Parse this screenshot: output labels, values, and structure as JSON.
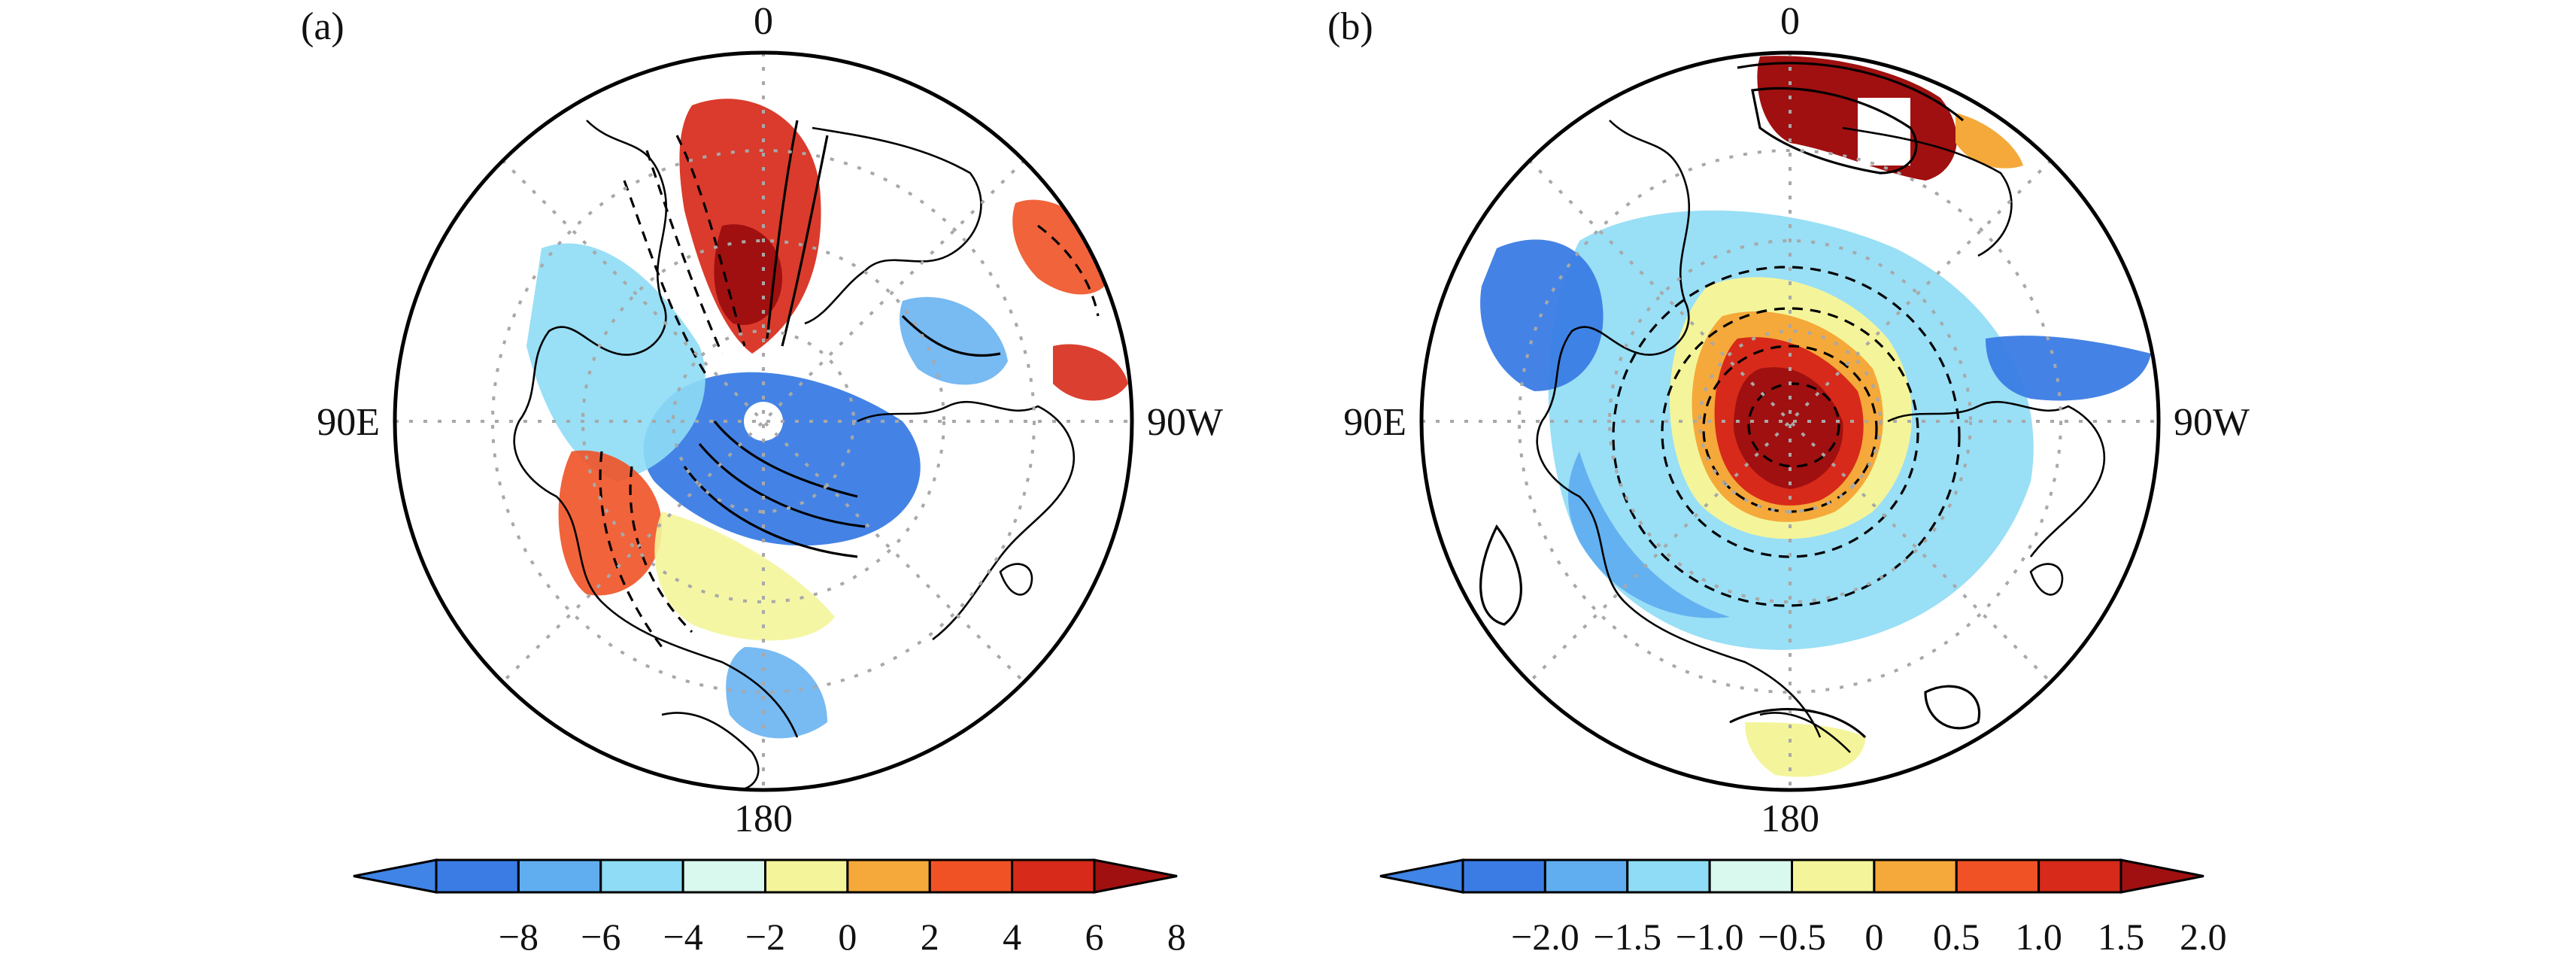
{
  "panels": [
    {
      "id": "a",
      "label": "(a)",
      "lon_labels": {
        "top": "0",
        "left": "90E",
        "right": "90W",
        "bottom": "180"
      },
      "colorbar": {
        "ticks": [
          "−8",
          "−6",
          "−4",
          "−2",
          "0",
          "2",
          "4",
          "6",
          "8"
        ],
        "colors": [
          "#3f84e6",
          "#3a7ce4",
          "#60aef0",
          "#8edcf5",
          "#d9f8ee",
          "#f4f59a",
          "#f5a93a",
          "#f05226",
          "#d72a1a",
          "#a01010"
        ]
      }
    },
    {
      "id": "b",
      "label": "(b)",
      "lon_labels": {
        "top": "0",
        "left": "90E",
        "right": "90W",
        "bottom": "180"
      },
      "colorbar": {
        "ticks": [
          "−2.0",
          "−1.5",
          "−1.0",
          "−0.5",
          "0",
          "0.5",
          "1.0",
          "1.5",
          "2.0"
        ],
        "colors": [
          "#3f84e6",
          "#3a7ce4",
          "#60aef0",
          "#8edcf5",
          "#d9f8ee",
          "#f4f59a",
          "#f5a93a",
          "#f05226",
          "#d72a1a",
          "#a01010"
        ]
      }
    }
  ]
}
